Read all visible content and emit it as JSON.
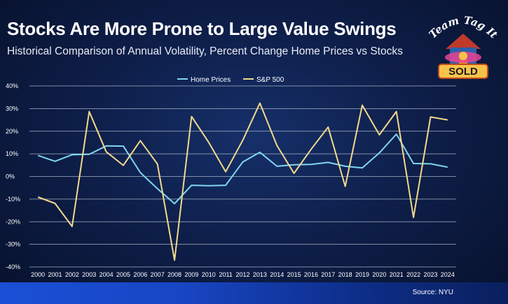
{
  "title": "Stocks Are More Prone to Large Value Swings",
  "subtitle": "Historical Comparison of Annual Volatility, Percent Change Home Prices vs Stocks",
  "logo": {
    "top_text": "Team Tag It",
    "badge_text": "SOLD"
  },
  "source": "Source: NYU",
  "colors": {
    "home": "#7fd6f0",
    "sp": "#f2d98c",
    "grid": "#cfd6e6"
  },
  "chart_data": {
    "type": "line",
    "title": "Stocks Are More Prone to Large Value Swings",
    "subtitle": "Historical Comparison of Annual Volatility, Percent Change Home Prices vs Stocks",
    "xlabel": "",
    "ylabel": "",
    "ylim": [
      -40,
      40
    ],
    "yticks": [
      -40,
      -30,
      -20,
      -10,
      0,
      10,
      20,
      30,
      40
    ],
    "ytick_labels": [
      "-40%",
      "-30%",
      "-20%",
      "-10%",
      "0%",
      "10%",
      "20%",
      "30%",
      "40%"
    ],
    "grid": true,
    "legend": "top-center",
    "categories": [
      "2000",
      "2001",
      "2002",
      "2003",
      "2004",
      "2005",
      "2006",
      "2007",
      "2008",
      "2009",
      "2010",
      "2011",
      "2012",
      "2013",
      "2014",
      "2015",
      "2016",
      "2017",
      "2018",
      "2019",
      "2020",
      "2021",
      "2022",
      "2023",
      "2024"
    ],
    "series": [
      {
        "name": "Home Prices",
        "values": [
          9.3,
          6.7,
          9.6,
          9.8,
          13.5,
          13.4,
          1.7,
          -5.4,
          -12.0,
          -3.9,
          -4.1,
          -3.9,
          6.4,
          10.7,
          4.5,
          5.2,
          5.3,
          6.2,
          4.5,
          3.8,
          10.4,
          18.7,
          5.7,
          5.6,
          4.1
        ]
      },
      {
        "name": "S&P 500",
        "values": [
          -9.1,
          -11.9,
          -22.1,
          28.7,
          10.9,
          4.9,
          15.8,
          5.5,
          -37.0,
          26.5,
          15.1,
          2.1,
          16.0,
          32.4,
          13.7,
          1.4,
          12.0,
          21.8,
          -4.4,
          31.5,
          18.4,
          28.7,
          -18.1,
          26.3,
          25.0
        ]
      }
    ]
  }
}
